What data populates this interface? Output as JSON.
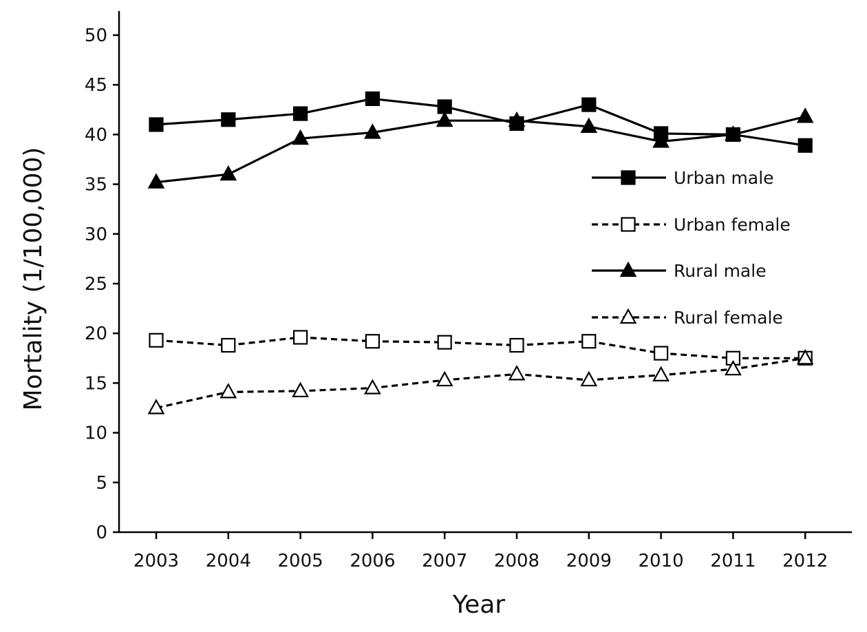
{
  "chart_data": {
    "type": "line",
    "title": "",
    "xlabel": "Year",
    "ylabel": "Mortality (1/100,000)",
    "categories": [
      "2003",
      "2004",
      "2005",
      "2006",
      "2007",
      "2008",
      "2009",
      "2010",
      "2011",
      "2012"
    ],
    "ylim": [
      0,
      50
    ],
    "yticks": [
      0,
      5,
      10,
      15,
      20,
      25,
      30,
      35,
      40,
      45,
      50
    ],
    "grid": false,
    "legend_position": "right",
    "series": [
      {
        "name": "Urban male",
        "marker": "square",
        "filled": true,
        "dashed": false,
        "color": "#000000",
        "values": [
          41.0,
          41.5,
          42.1,
          43.6,
          42.8,
          41.1,
          43.0,
          40.1,
          40.0,
          38.9
        ]
      },
      {
        "name": "Urban female",
        "marker": "square",
        "filled": false,
        "dashed": true,
        "color": "#000000",
        "values": [
          19.3,
          18.8,
          19.6,
          19.2,
          19.1,
          18.8,
          19.2,
          18.0,
          17.5,
          17.5
        ]
      },
      {
        "name": "Rural male",
        "marker": "triangle",
        "filled": true,
        "dashed": false,
        "color": "#000000",
        "values": [
          35.2,
          36.0,
          39.6,
          40.2,
          41.4,
          41.4,
          40.8,
          39.3,
          40.0,
          41.8
        ]
      },
      {
        "name": "Rural female",
        "marker": "triangle",
        "filled": false,
        "dashed": true,
        "color": "#000000",
        "values": [
          12.5,
          14.1,
          14.2,
          14.5,
          15.3,
          15.9,
          15.3,
          15.8,
          16.4,
          17.5
        ]
      }
    ]
  }
}
